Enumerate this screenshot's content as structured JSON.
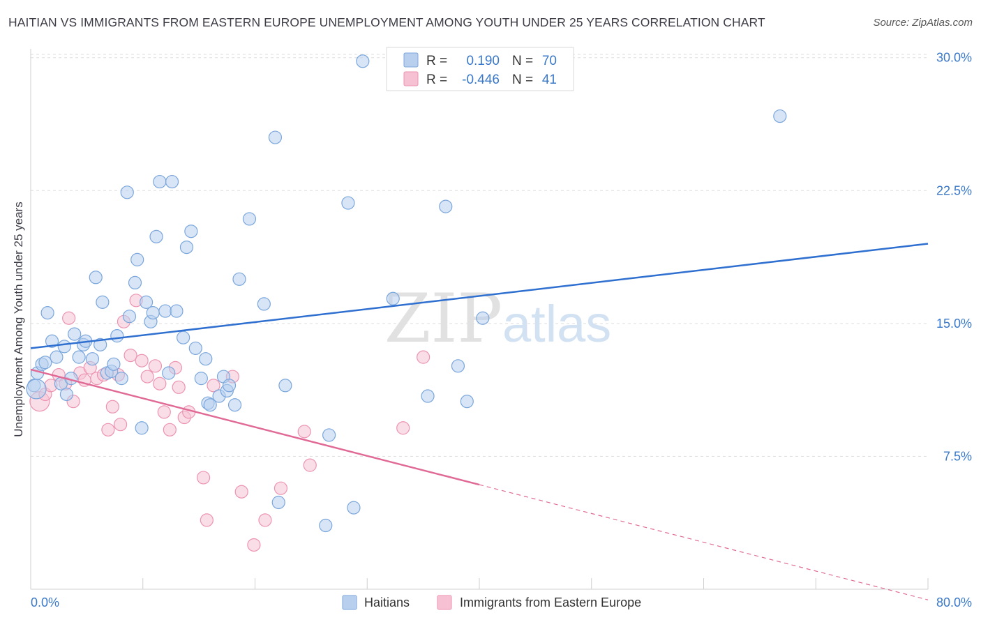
{
  "header": {
    "title": "HAITIAN VS IMMIGRANTS FROM EASTERN EUROPE UNEMPLOYMENT AMONG YOUTH UNDER 25 YEARS CORRELATION CHART",
    "source": "Source: ZipAtlas.com"
  },
  "watermark": {
    "zip": "ZIP",
    "atlas": "atlas"
  },
  "legend_box": {
    "rows": [
      {
        "r_label": "R =",
        "r_value": "0.190",
        "n_label": "N =",
        "n_value": "70"
      },
      {
        "r_label": "R =",
        "r_value": "-0.446",
        "n_label": "N =",
        "n_value": "41"
      }
    ]
  },
  "colors": {
    "blue_fill": "#b8d0ee",
    "blue_stroke": "#7aa6dc",
    "blue_line": "#2e6fd0",
    "pink_fill": "#f6c2d3",
    "pink_stroke": "#ec93b2",
    "pink_line": "#e06a95",
    "value_text": "#3a78c9",
    "grid": "#dddddd"
  },
  "chart_data": {
    "type": "scatter",
    "title": "HAITIAN VS IMMIGRANTS FROM EASTERN EUROPE UNEMPLOYMENT AMONG YOUTH UNDER 25 YEARS CORRELATION CHART",
    "xlabel": "",
    "ylabel": "Unemployment Among Youth under 25 years",
    "xlim": [
      0,
      80
    ],
    "ylim": [
      0,
      30.5
    ],
    "x_tick_labels": [
      "0.0%",
      "80.0%"
    ],
    "y_ticks": [
      7.5,
      15.0,
      22.5,
      30.0
    ],
    "y_tick_labels": [
      "7.5%",
      "15.0%",
      "22.5%",
      "30.0%"
    ],
    "grid": true,
    "legend_position": "bottom",
    "series": [
      {
        "name": "Haitians",
        "color": "#7aa6dc",
        "r": 0.19,
        "n": 70,
        "trend": {
          "x": [
            0,
            80
          ],
          "y": [
            13.6,
            19.5
          ]
        },
        "points": [
          [
            0.3,
            11.5
          ],
          [
            0.6,
            12.2
          ],
          [
            1.0,
            12.7
          ],
          [
            1.3,
            12.8
          ],
          [
            1.5,
            15.6
          ],
          [
            1.9,
            14.0
          ],
          [
            2.3,
            13.1
          ],
          [
            2.7,
            11.6
          ],
          [
            3.0,
            13.7
          ],
          [
            3.2,
            11.0
          ],
          [
            3.6,
            11.9
          ],
          [
            3.9,
            14.4
          ],
          [
            4.3,
            13.1
          ],
          [
            4.7,
            13.8
          ],
          [
            4.9,
            14.0
          ],
          [
            5.5,
            13.0
          ],
          [
            5.8,
            17.6
          ],
          [
            6.2,
            13.8
          ],
          [
            6.4,
            16.2
          ],
          [
            6.8,
            12.2
          ],
          [
            7.2,
            12.3
          ],
          [
            7.4,
            12.7
          ],
          [
            7.7,
            14.3
          ],
          [
            8.1,
            11.9
          ],
          [
            8.6,
            22.4
          ],
          [
            8.8,
            15.4
          ],
          [
            9.3,
            17.3
          ],
          [
            9.5,
            18.6
          ],
          [
            9.9,
            9.1
          ],
          [
            10.3,
            16.2
          ],
          [
            10.7,
            15.1
          ],
          [
            10.9,
            15.6
          ],
          [
            11.2,
            19.9
          ],
          [
            11.5,
            23.0
          ],
          [
            12.0,
            15.7
          ],
          [
            12.3,
            12.2
          ],
          [
            12.6,
            23.0
          ],
          [
            13.0,
            15.7
          ],
          [
            13.6,
            14.2
          ],
          [
            13.9,
            19.3
          ],
          [
            14.3,
            20.2
          ],
          [
            14.7,
            13.6
          ],
          [
            15.2,
            11.9
          ],
          [
            15.6,
            13.0
          ],
          [
            15.8,
            10.5
          ],
          [
            16.0,
            10.4
          ],
          [
            16.8,
            10.9
          ],
          [
            17.2,
            12.0
          ],
          [
            17.5,
            11.2
          ],
          [
            17.7,
            11.5
          ],
          [
            18.2,
            10.4
          ],
          [
            18.6,
            17.5
          ],
          [
            19.5,
            20.9
          ],
          [
            20.8,
            16.1
          ],
          [
            21.8,
            25.5
          ],
          [
            22.7,
            11.5
          ],
          [
            22.1,
            4.9
          ],
          [
            26.3,
            3.6
          ],
          [
            26.6,
            8.7
          ],
          [
            28.3,
            21.8
          ],
          [
            28.8,
            4.6
          ],
          [
            29.6,
            29.8
          ],
          [
            32.3,
            16.4
          ],
          [
            35.4,
            10.9
          ],
          [
            37.0,
            21.6
          ],
          [
            38.1,
            12.6
          ],
          [
            38.9,
            10.6
          ],
          [
            40.3,
            15.3
          ],
          [
            66.8,
            26.7
          ],
          [
            0.5,
            11.3
          ]
        ]
      },
      {
        "name": "Immigrants from Eastern Europe",
        "color": "#ec93b2",
        "r": -0.446,
        "n": 41,
        "trend": {
          "x": [
            0,
            40
          ],
          "y": [
            12.4,
            5.9
          ]
        },
        "trend_dashed": {
          "x": [
            40,
            80
          ],
          "y": [
            5.9,
            -0.6
          ]
        },
        "points": [
          [
            0.8,
            10.6
          ],
          [
            1.3,
            11.0
          ],
          [
            1.8,
            11.5
          ],
          [
            2.5,
            12.1
          ],
          [
            3.1,
            11.6
          ],
          [
            3.4,
            15.3
          ],
          [
            3.8,
            10.6
          ],
          [
            4.4,
            12.2
          ],
          [
            4.8,
            11.8
          ],
          [
            5.3,
            12.5
          ],
          [
            5.9,
            11.9
          ],
          [
            6.5,
            12.1
          ],
          [
            6.9,
            9.0
          ],
          [
            7.3,
            10.3
          ],
          [
            7.8,
            12.1
          ],
          [
            8.0,
            9.3
          ],
          [
            8.3,
            15.1
          ],
          [
            8.9,
            13.2
          ],
          [
            9.4,
            16.3
          ],
          [
            9.9,
            12.9
          ],
          [
            10.4,
            12.0
          ],
          [
            11.1,
            12.6
          ],
          [
            11.5,
            11.6
          ],
          [
            11.9,
            10.0
          ],
          [
            12.4,
            9.0
          ],
          [
            12.9,
            12.5
          ],
          [
            13.2,
            11.4
          ],
          [
            13.7,
            9.7
          ],
          [
            14.1,
            10.0
          ],
          [
            15.4,
            6.3
          ],
          [
            15.7,
            3.9
          ],
          [
            16.3,
            11.5
          ],
          [
            18.0,
            12.0
          ],
          [
            18.8,
            5.5
          ],
          [
            19.9,
            2.5
          ],
          [
            20.9,
            3.9
          ],
          [
            22.3,
            5.7
          ],
          [
            24.4,
            8.9
          ],
          [
            24.9,
            7.0
          ],
          [
            33.2,
            9.1
          ],
          [
            35.0,
            13.1
          ]
        ]
      }
    ]
  }
}
